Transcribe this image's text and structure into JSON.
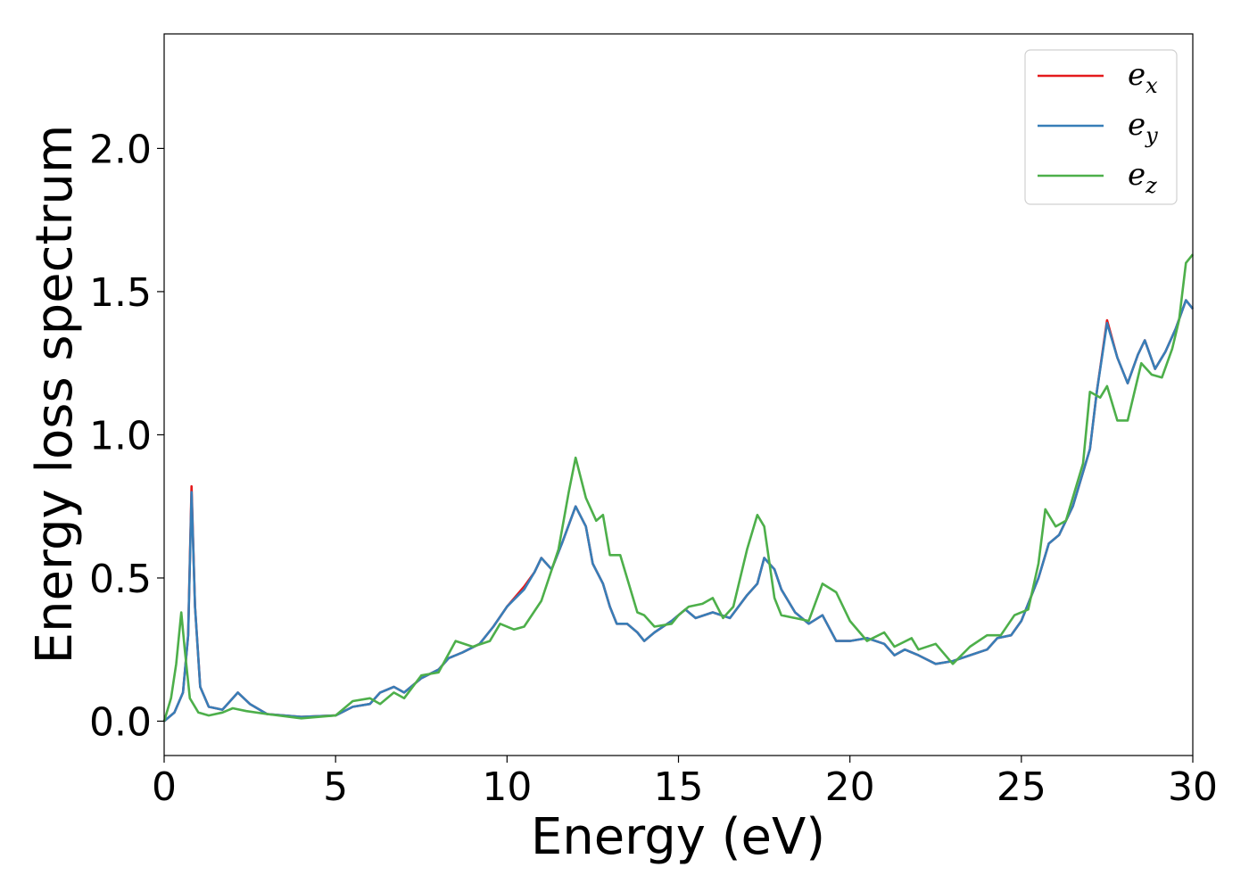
{
  "chart_data": {
    "type": "line",
    "title": "",
    "xlabel": "Energy (eV)",
    "ylabel": "Energy loss spectrum",
    "xlim": [
      0,
      30
    ],
    "ylim": [
      -0.12,
      2.4
    ],
    "x_ticks": [
      "0",
      "5",
      "10",
      "15",
      "20",
      "25",
      "30"
    ],
    "y_ticks": [
      "0.0",
      "0.5",
      "1.0",
      "1.5",
      "2.0"
    ],
    "grid": false,
    "legend_position": "top-right",
    "series": [
      {
        "name": "e_x",
        "legend_base": "e",
        "legend_sub": "x",
        "color": "#e41a1c",
        "points": [
          [
            0,
            0
          ],
          [
            0.3,
            0.03
          ],
          [
            0.55,
            0.1
          ],
          [
            0.7,
            0.3
          ],
          [
            0.8,
            0.82
          ],
          [
            0.9,
            0.4
          ],
          [
            1.05,
            0.12
          ],
          [
            1.3,
            0.05
          ],
          [
            1.7,
            0.04
          ],
          [
            2.0,
            0.08
          ],
          [
            2.15,
            0.1
          ],
          [
            2.5,
            0.06
          ],
          [
            3,
            0.025
          ],
          [
            4,
            0.015
          ],
          [
            5,
            0.02
          ],
          [
            5.5,
            0.05
          ],
          [
            6,
            0.06
          ],
          [
            6.3,
            0.1
          ],
          [
            6.7,
            0.12
          ],
          [
            7,
            0.1
          ],
          [
            7.5,
            0.15
          ],
          [
            8,
            0.18
          ],
          [
            8.3,
            0.22
          ],
          [
            8.7,
            0.24
          ],
          [
            9.2,
            0.27
          ],
          [
            9.6,
            0.33
          ],
          [
            10,
            0.4
          ],
          [
            10.5,
            0.47
          ],
          [
            10.8,
            0.52
          ],
          [
            11,
            0.57
          ],
          [
            11.3,
            0.53
          ],
          [
            11.6,
            0.62
          ],
          [
            12,
            0.75
          ],
          [
            12.3,
            0.68
          ],
          [
            12.5,
            0.55
          ],
          [
            12.8,
            0.48
          ],
          [
            13,
            0.4
          ],
          [
            13.2,
            0.34
          ],
          [
            13.5,
            0.34
          ],
          [
            13.8,
            0.31
          ],
          [
            14,
            0.28
          ],
          [
            14.3,
            0.31
          ],
          [
            14.8,
            0.35
          ],
          [
            15.2,
            0.39
          ],
          [
            15.5,
            0.36
          ],
          [
            16,
            0.38
          ],
          [
            16.5,
            0.36
          ],
          [
            17,
            0.44
          ],
          [
            17.3,
            0.48
          ],
          [
            17.5,
            0.57
          ],
          [
            17.8,
            0.53
          ],
          [
            18,
            0.46
          ],
          [
            18.4,
            0.38
          ],
          [
            18.8,
            0.34
          ],
          [
            19.2,
            0.37
          ],
          [
            19.6,
            0.28
          ],
          [
            20,
            0.28
          ],
          [
            20.5,
            0.29
          ],
          [
            21,
            0.27
          ],
          [
            21.3,
            0.23
          ],
          [
            21.6,
            0.25
          ],
          [
            22,
            0.23
          ],
          [
            22.5,
            0.2
          ],
          [
            23,
            0.21
          ],
          [
            23.5,
            0.23
          ],
          [
            24,
            0.25
          ],
          [
            24.3,
            0.29
          ],
          [
            24.7,
            0.3
          ],
          [
            25,
            0.35
          ],
          [
            25.5,
            0.5
          ],
          [
            25.8,
            0.62
          ],
          [
            26.1,
            0.65
          ],
          [
            26.5,
            0.75
          ],
          [
            27,
            0.95
          ],
          [
            27.2,
            1.15
          ],
          [
            27.5,
            1.4
          ],
          [
            27.8,
            1.27
          ],
          [
            28.1,
            1.18
          ],
          [
            28.4,
            1.28
          ],
          [
            28.6,
            1.33
          ],
          [
            28.9,
            1.23
          ],
          [
            29.2,
            1.29
          ],
          [
            29.5,
            1.37
          ],
          [
            29.8,
            1.47
          ],
          [
            30,
            1.44
          ]
        ]
      },
      {
        "name": "e_y",
        "legend_base": "e",
        "legend_sub": "y",
        "color": "#377eb8",
        "points": [
          [
            0,
            0
          ],
          [
            0.3,
            0.03
          ],
          [
            0.55,
            0.1
          ],
          [
            0.7,
            0.3
          ],
          [
            0.8,
            0.8
          ],
          [
            0.9,
            0.4
          ],
          [
            1.05,
            0.12
          ],
          [
            1.3,
            0.05
          ],
          [
            1.7,
            0.04
          ],
          [
            2.0,
            0.08
          ],
          [
            2.15,
            0.1
          ],
          [
            2.5,
            0.06
          ],
          [
            3,
            0.025
          ],
          [
            4,
            0.015
          ],
          [
            5,
            0.02
          ],
          [
            5.5,
            0.05
          ],
          [
            6,
            0.06
          ],
          [
            6.3,
            0.1
          ],
          [
            6.7,
            0.12
          ],
          [
            7,
            0.1
          ],
          [
            7.5,
            0.15
          ],
          [
            8,
            0.18
          ],
          [
            8.3,
            0.22
          ],
          [
            8.7,
            0.24
          ],
          [
            9.2,
            0.27
          ],
          [
            9.6,
            0.33
          ],
          [
            10,
            0.4
          ],
          [
            10.5,
            0.46
          ],
          [
            10.8,
            0.52
          ],
          [
            11,
            0.57
          ],
          [
            11.3,
            0.53
          ],
          [
            11.6,
            0.62
          ],
          [
            12,
            0.75
          ],
          [
            12.3,
            0.68
          ],
          [
            12.5,
            0.55
          ],
          [
            12.8,
            0.48
          ],
          [
            13,
            0.4
          ],
          [
            13.2,
            0.34
          ],
          [
            13.5,
            0.34
          ],
          [
            13.8,
            0.31
          ],
          [
            14,
            0.28
          ],
          [
            14.3,
            0.31
          ],
          [
            14.8,
            0.35
          ],
          [
            15.2,
            0.39
          ],
          [
            15.5,
            0.36
          ],
          [
            16,
            0.38
          ],
          [
            16.5,
            0.36
          ],
          [
            17,
            0.44
          ],
          [
            17.3,
            0.48
          ],
          [
            17.5,
            0.57
          ],
          [
            17.8,
            0.53
          ],
          [
            18,
            0.46
          ],
          [
            18.4,
            0.38
          ],
          [
            18.8,
            0.34
          ],
          [
            19.2,
            0.37
          ],
          [
            19.6,
            0.28
          ],
          [
            20,
            0.28
          ],
          [
            20.5,
            0.29
          ],
          [
            21,
            0.27
          ],
          [
            21.3,
            0.23
          ],
          [
            21.6,
            0.25
          ],
          [
            22,
            0.23
          ],
          [
            22.5,
            0.2
          ],
          [
            23,
            0.21
          ],
          [
            23.5,
            0.23
          ],
          [
            24,
            0.25
          ],
          [
            24.3,
            0.29
          ],
          [
            24.7,
            0.3
          ],
          [
            25,
            0.35
          ],
          [
            25.5,
            0.5
          ],
          [
            25.8,
            0.62
          ],
          [
            26.1,
            0.65
          ],
          [
            26.5,
            0.75
          ],
          [
            27,
            0.95
          ],
          [
            27.2,
            1.15
          ],
          [
            27.5,
            1.39
          ],
          [
            27.8,
            1.27
          ],
          [
            28.1,
            1.18
          ],
          [
            28.4,
            1.28
          ],
          [
            28.6,
            1.33
          ],
          [
            28.9,
            1.23
          ],
          [
            29.2,
            1.29
          ],
          [
            29.5,
            1.37
          ],
          [
            29.8,
            1.47
          ],
          [
            30,
            1.44
          ]
        ]
      },
      {
        "name": "e_z",
        "legend_base": "e",
        "legend_sub": "z",
        "color": "#4daf4a",
        "points": [
          [
            0,
            0
          ],
          [
            0.2,
            0.08
          ],
          [
            0.35,
            0.2
          ],
          [
            0.5,
            0.38
          ],
          [
            0.6,
            0.25
          ],
          [
            0.75,
            0.08
          ],
          [
            1,
            0.03
          ],
          [
            1.3,
            0.02
          ],
          [
            1.7,
            0.03
          ],
          [
            2.0,
            0.045
          ],
          [
            2.4,
            0.035
          ],
          [
            3,
            0.025
          ],
          [
            4,
            0.01
          ],
          [
            5,
            0.02
          ],
          [
            5.5,
            0.07
          ],
          [
            6,
            0.08
          ],
          [
            6.3,
            0.06
          ],
          [
            6.7,
            0.1
          ],
          [
            7,
            0.08
          ],
          [
            7.5,
            0.16
          ],
          [
            8,
            0.17
          ],
          [
            8.5,
            0.28
          ],
          [
            9,
            0.26
          ],
          [
            9.5,
            0.28
          ],
          [
            9.8,
            0.34
          ],
          [
            10.2,
            0.32
          ],
          [
            10.5,
            0.33
          ],
          [
            11,
            0.42
          ],
          [
            11.5,
            0.6
          ],
          [
            11.8,
            0.8
          ],
          [
            12,
            0.92
          ],
          [
            12.3,
            0.78
          ],
          [
            12.6,
            0.7
          ],
          [
            12.8,
            0.72
          ],
          [
            13,
            0.58
          ],
          [
            13.3,
            0.58
          ],
          [
            13.8,
            0.38
          ],
          [
            14,
            0.37
          ],
          [
            14.3,
            0.33
          ],
          [
            14.8,
            0.34
          ],
          [
            15,
            0.37
          ],
          [
            15.3,
            0.4
          ],
          [
            15.7,
            0.41
          ],
          [
            16,
            0.43
          ],
          [
            16.3,
            0.36
          ],
          [
            16.6,
            0.4
          ],
          [
            17,
            0.6
          ],
          [
            17.3,
            0.72
          ],
          [
            17.5,
            0.68
          ],
          [
            17.8,
            0.43
          ],
          [
            18,
            0.37
          ],
          [
            18.4,
            0.36
          ],
          [
            18.8,
            0.35
          ],
          [
            19.2,
            0.48
          ],
          [
            19.6,
            0.45
          ],
          [
            20,
            0.35
          ],
          [
            20.5,
            0.28
          ],
          [
            21,
            0.31
          ],
          [
            21.3,
            0.26
          ],
          [
            21.8,
            0.29
          ],
          [
            22,
            0.25
          ],
          [
            22.5,
            0.27
          ],
          [
            23,
            0.2
          ],
          [
            23.5,
            0.26
          ],
          [
            24,
            0.3
          ],
          [
            24.4,
            0.3
          ],
          [
            24.8,
            0.37
          ],
          [
            25.2,
            0.39
          ],
          [
            25.5,
            0.55
          ],
          [
            25.7,
            0.74
          ],
          [
            26,
            0.68
          ],
          [
            26.3,
            0.7
          ],
          [
            26.8,
            0.9
          ],
          [
            27,
            1.15
          ],
          [
            27.3,
            1.13
          ],
          [
            27.5,
            1.17
          ],
          [
            27.8,
            1.05
          ],
          [
            28.1,
            1.05
          ],
          [
            28.5,
            1.25
          ],
          [
            28.8,
            1.21
          ],
          [
            29.1,
            1.2
          ],
          [
            29.4,
            1.3
          ],
          [
            29.6,
            1.4
          ],
          [
            29.8,
            1.6
          ],
          [
            30,
            1.63
          ]
        ]
      }
    ]
  }
}
